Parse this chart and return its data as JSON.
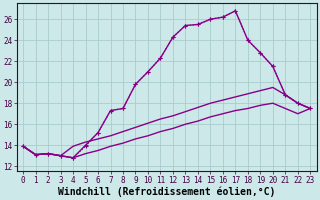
{
  "xlabel": "Windchill (Refroidissement éolien,°C)",
  "bg_color": "#cce8e8",
  "grid_color": "#aacccc",
  "line_color": "#880088",
  "xlim": [
    -0.5,
    23.5
  ],
  "ylim": [
    11.5,
    27.5
  ],
  "xticks": [
    0,
    1,
    2,
    3,
    4,
    5,
    6,
    7,
    8,
    9,
    10,
    11,
    12,
    13,
    14,
    15,
    16,
    17,
    18,
    19,
    20,
    21,
    22,
    23
  ],
  "yticks": [
    12,
    14,
    16,
    18,
    20,
    22,
    24,
    26
  ],
  "series": [
    {
      "x": [
        0,
        1,
        2,
        3,
        4,
        5,
        6,
        7,
        8,
        9,
        10,
        11,
        12,
        13,
        14,
        15,
        16,
        17,
        18,
        19,
        20,
        21,
        22,
        23
      ],
      "y": [
        13.9,
        13.1,
        13.2,
        13.0,
        12.8,
        14.0,
        15.2,
        17.3,
        17.5,
        19.8,
        21.0,
        22.3,
        24.3,
        25.4,
        25.5,
        26.0,
        26.2,
        26.8,
        24.0,
        22.8,
        21.5,
        18.8,
        18.0,
        17.5
      ],
      "marker": true,
      "linestyle": "solid",
      "linewidth": 1.0
    },
    {
      "x": [
        0,
        1,
        2,
        3,
        4,
        5,
        6,
        7,
        8,
        9,
        10,
        11,
        12,
        13,
        14,
        15,
        16,
        17,
        18,
        19,
        20,
        21,
        22,
        23
      ],
      "y": [
        13.9,
        13.1,
        13.2,
        13.0,
        12.8,
        13.9,
        15.2,
        17.3,
        17.5,
        19.8,
        21.0,
        22.3,
        24.3,
        25.4,
        25.5,
        26.0,
        26.2,
        26.8,
        24.0,
        22.8,
        21.5,
        18.8,
        18.0,
        17.5
      ],
      "marker": true,
      "linestyle": "dotted",
      "linewidth": 0.8
    },
    {
      "x": [
        0,
        1,
        2,
        3,
        4,
        5,
        6,
        7,
        8,
        9,
        10,
        11,
        12,
        13,
        14,
        15,
        16,
        17,
        18,
        19,
        20,
        21,
        22,
        23
      ],
      "y": [
        13.9,
        13.1,
        13.2,
        13.0,
        13.9,
        14.3,
        14.6,
        14.9,
        15.3,
        15.7,
        16.1,
        16.5,
        16.8,
        17.2,
        17.6,
        18.0,
        18.3,
        18.6,
        18.9,
        19.2,
        19.5,
        18.8,
        18.0,
        17.5
      ],
      "marker": false,
      "linestyle": "solid",
      "linewidth": 1.0
    },
    {
      "x": [
        0,
        1,
        2,
        3,
        4,
        5,
        6,
        7,
        8,
        9,
        10,
        11,
        12,
        13,
        14,
        15,
        16,
        17,
        18,
        19,
        20,
        21,
        22,
        23
      ],
      "y": [
        13.9,
        13.1,
        13.2,
        13.0,
        12.8,
        13.2,
        13.5,
        13.9,
        14.2,
        14.6,
        14.9,
        15.3,
        15.6,
        16.0,
        16.3,
        16.7,
        17.0,
        17.3,
        17.5,
        17.8,
        18.0,
        17.5,
        17.0,
        17.5
      ],
      "marker": false,
      "linestyle": "solid",
      "linewidth": 1.0
    }
  ],
  "tick_fontsize": 5.5,
  "xlabel_fontsize": 7.0,
  "linewidth": 1.0
}
